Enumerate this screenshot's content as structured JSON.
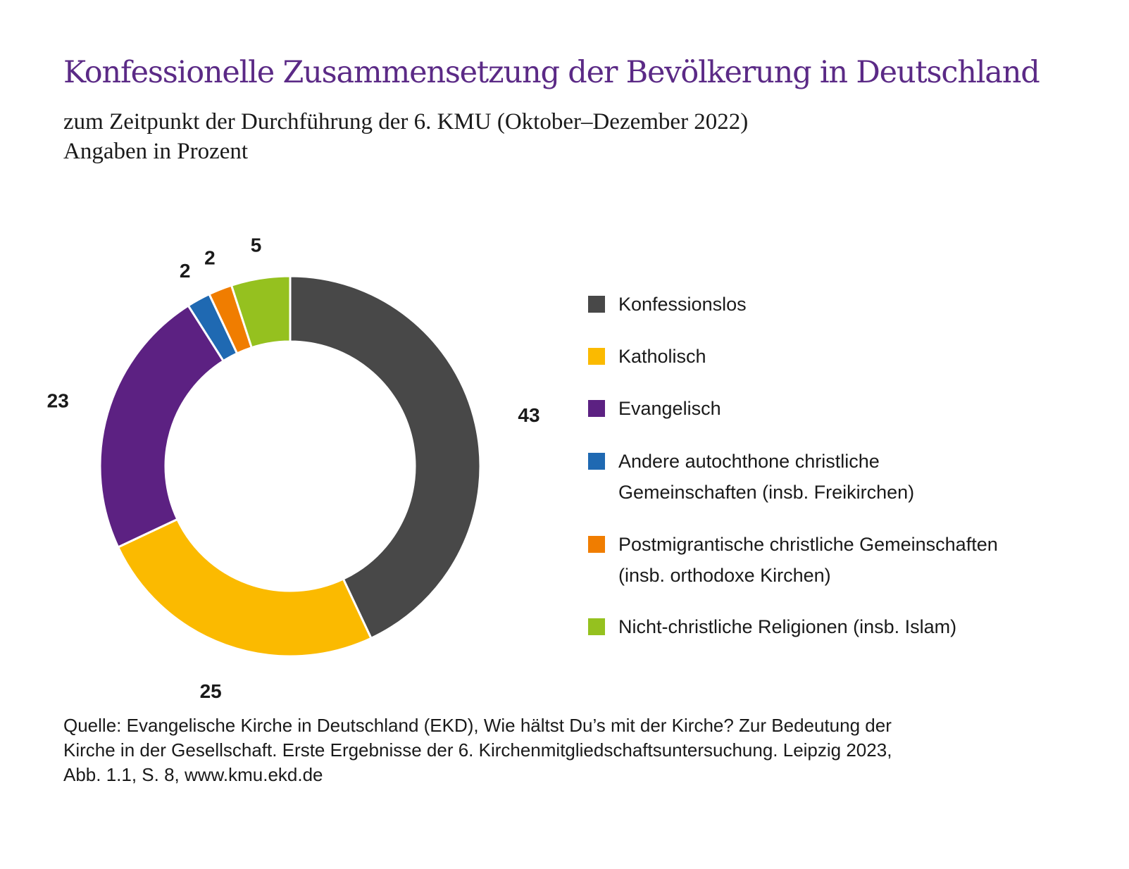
{
  "header": {
    "title": "Konfessionelle Zusammensetzung der Bevölkerung in Deutschland",
    "subtitle_lines": [
      "zum Zeitpunkt der Durchführung der 6. KMU (Oktober–Dezember 2022)",
      "Angaben in Prozent"
    ]
  },
  "chart_data": {
    "type": "pie",
    "variant": "donut",
    "title": "Konfessionelle Zusammensetzung der Bevölkerung in Deutschland",
    "subtitle": "zum Zeitpunkt der Durchführung der 6. KMU (Oktober–Dezember 2022) Angaben in Prozent",
    "unit": "%",
    "start": "12 o'clock",
    "direction": "clockwise",
    "legend_position": "right",
    "slices": [
      {
        "label": "Konfessionslos",
        "value": 43,
        "value_label": "43",
        "color": "#484848"
      },
      {
        "label": "Katholisch",
        "value": 25,
        "value_label": "25",
        "color": "#fbba00"
      },
      {
        "label": "Evangelisch",
        "value": 23,
        "value_label": "23",
        "color": "#5c2182"
      },
      {
        "label": "Andere autochthone christliche Gemeinschaften (insb. Freikirchen)",
        "value": 2,
        "value_label": "2",
        "color": "#1f69b2"
      },
      {
        "label": "Postmigrantische christliche Gemeinschaften (insb. orthodoxe Kirchen)",
        "value": 2,
        "value_label": "2",
        "color": "#f07d00"
      },
      {
        "label": "Nicht-christliche Religionen (insb. Islam)",
        "value": 5,
        "value_label": "5",
        "color": "#95c11f"
      }
    ]
  },
  "legend": {
    "items": [
      {
        "lines": [
          "Konfessionslos"
        ],
        "color": "#484848"
      },
      {
        "lines": [
          "Katholisch"
        ],
        "color": "#fbba00"
      },
      {
        "lines": [
          "Evangelisch"
        ],
        "color": "#5c2182"
      },
      {
        "lines": [
          "Andere autochthone christliche",
          "Gemeinschaften (insb. Freikirchen)"
        ],
        "color": "#1f69b2"
      },
      {
        "lines": [
          "Postmigrantische christliche Gemeinschaften",
          "(insb. orthodoxe Kirchen)"
        ],
        "color": "#f07d00"
      },
      {
        "lines": [
          "Nicht-christliche Religionen (insb. Islam)"
        ],
        "color": "#95c11f"
      }
    ]
  },
  "source": {
    "lines": [
      "Quelle: Evangelische Kirche in Deutschland (EKD), Wie hältst Du’s mit der Kirche? Zur Bedeutung der",
      "Kirche in der Gesellschaft. Erste Ergebnisse der 6. Kirchenmitgliedschaftsuntersuchung. Leipzig 2023,",
      "Abb. 1.1, S. 8, www.kmu.ekd.de"
    ]
  }
}
